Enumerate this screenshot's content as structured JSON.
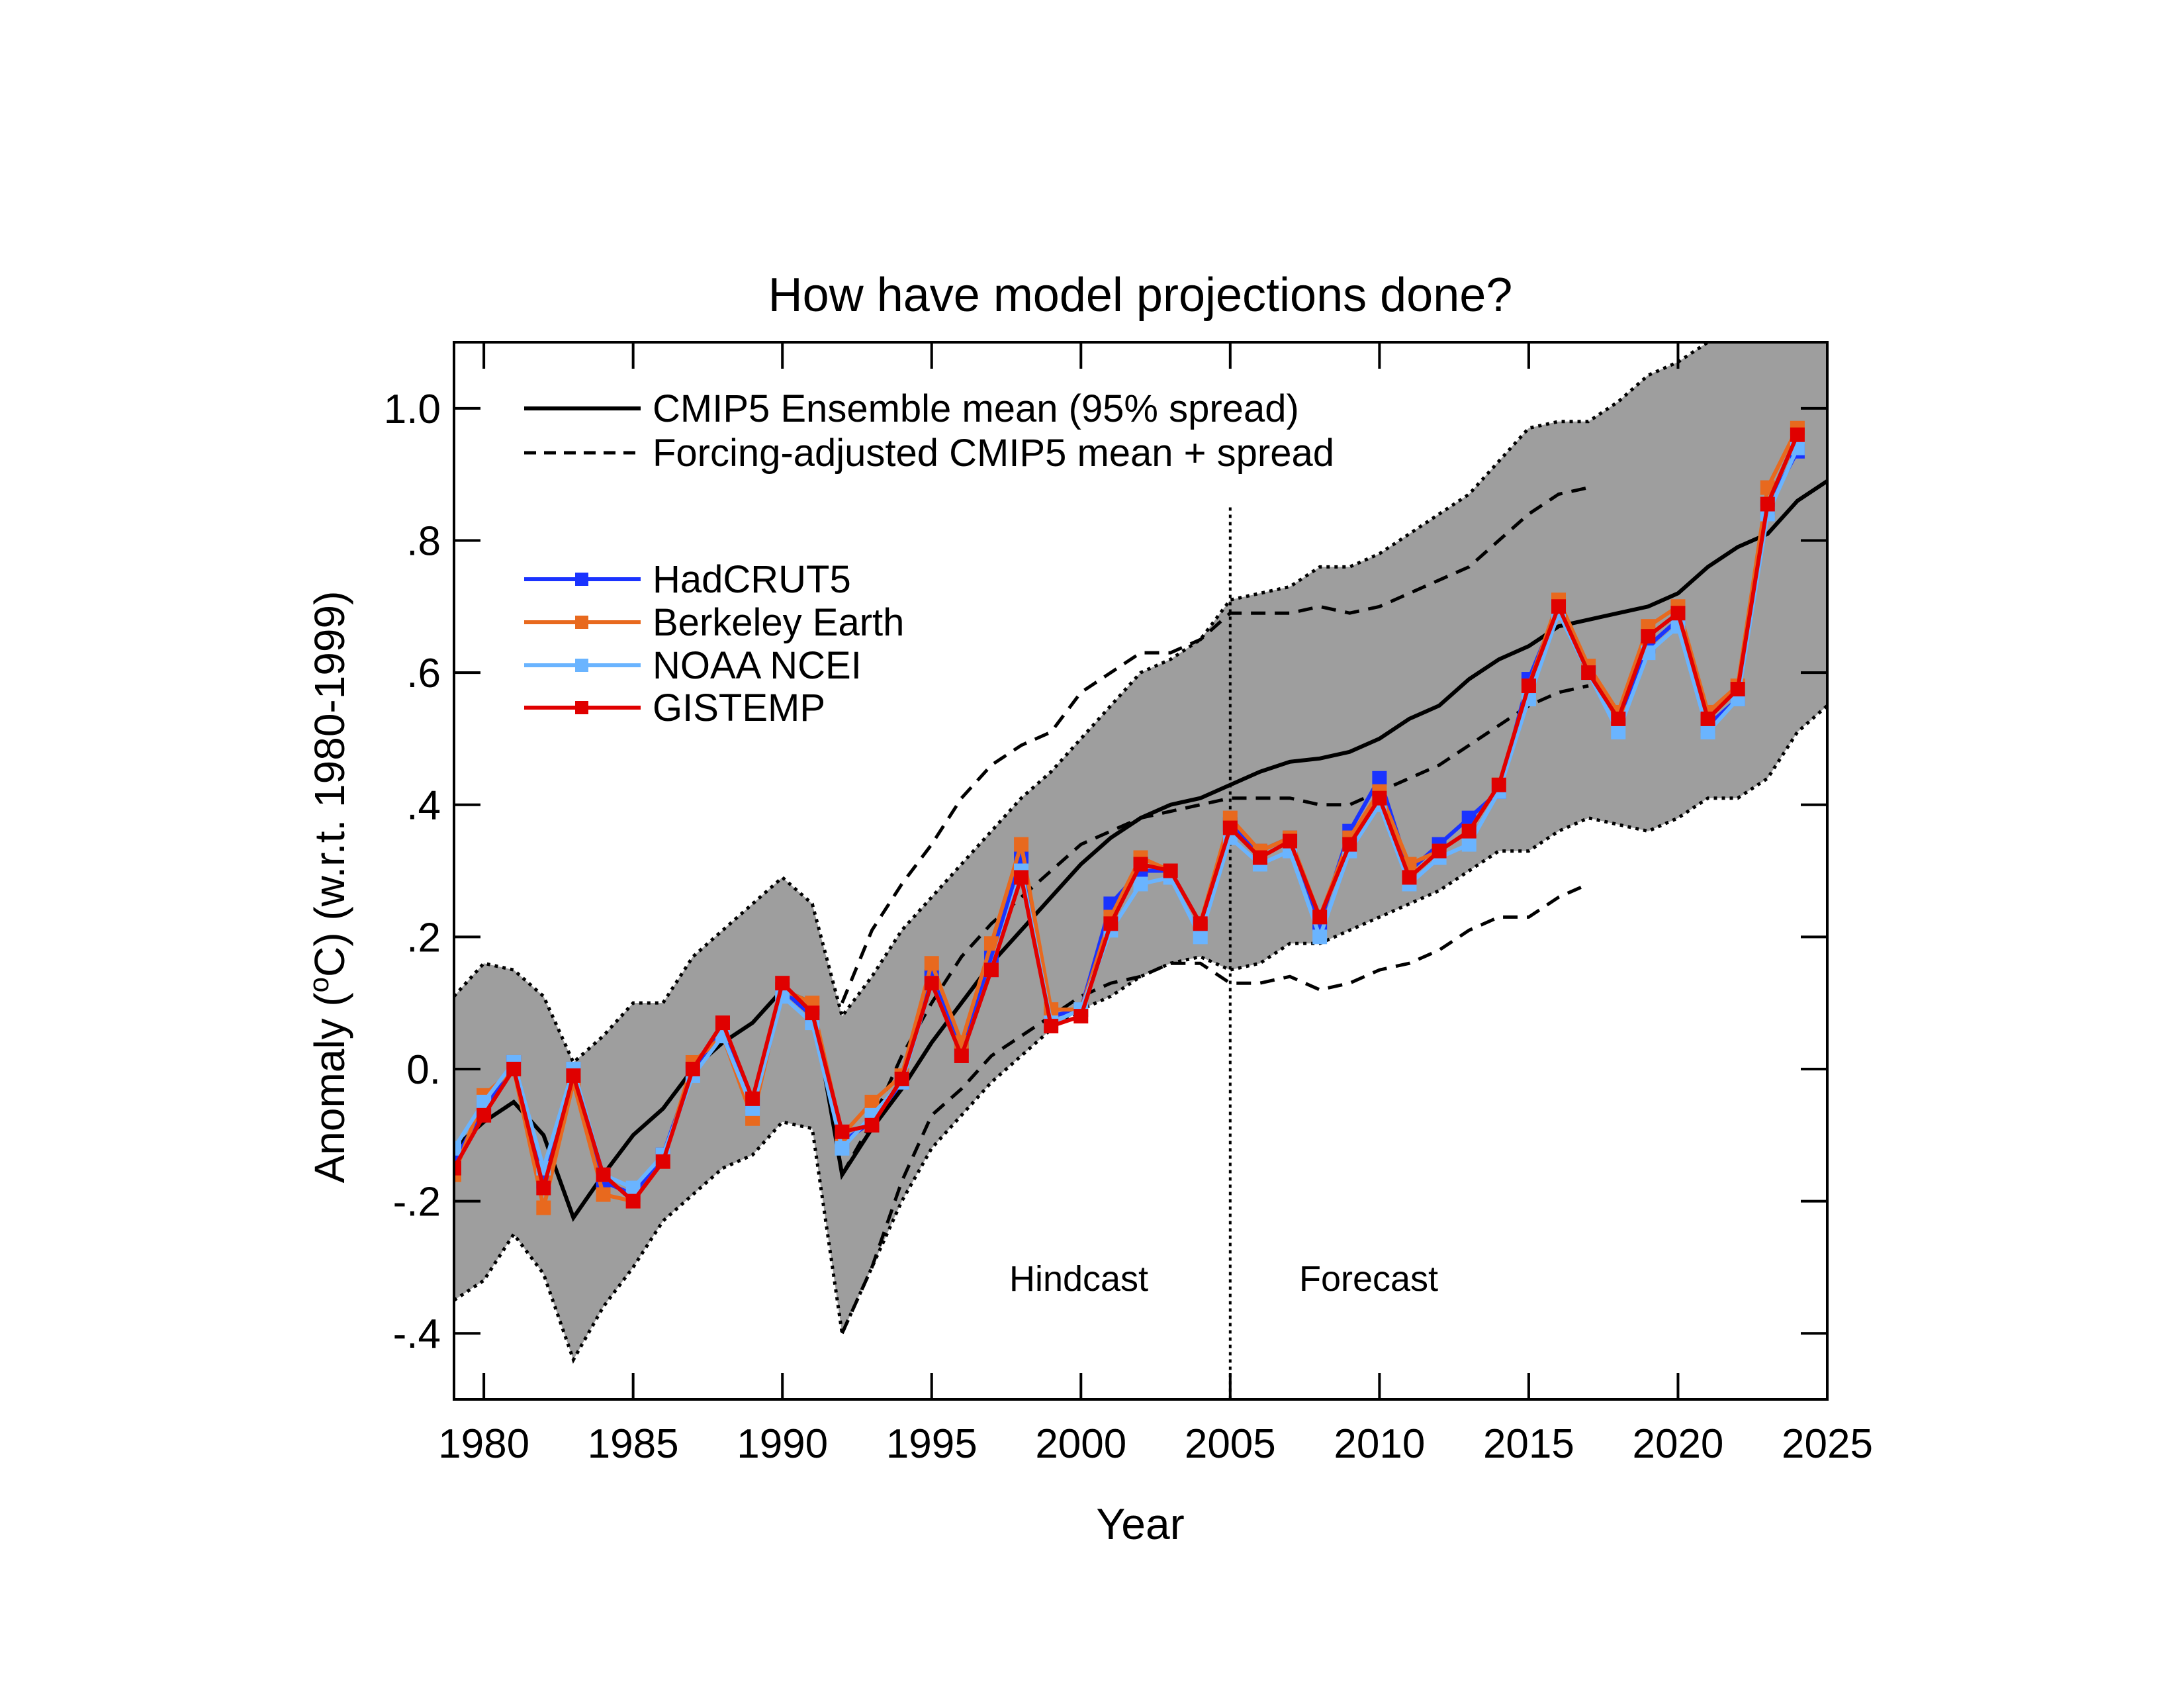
{
  "chart_data": {
    "type": "line",
    "title": "How have model projections done?",
    "xlabel": "Year",
    "ylabel": "Anomaly (°C) (w.r.t. 1980-1999)",
    "ylabel_parts": {
      "pre": "Anomaly (",
      "sup": "o",
      "post": "C) (w.r.t. 1980-1999)"
    },
    "xlim": [
      1979,
      2025
    ],
    "ylim": [
      -0.5,
      1.1
    ],
    "xticks": [
      1980,
      1985,
      1990,
      1995,
      2000,
      2005,
      2010,
      2015,
      2020,
      2025
    ],
    "xtick_labels": [
      "1980",
      "1985",
      "1990",
      "1995",
      "2000",
      "2005",
      "2010",
      "2015",
      "2020",
      "2025"
    ],
    "yticks": [
      1.0,
      0.8,
      0.6,
      0.4,
      0.2,
      0.0,
      -0.2,
      -0.4
    ],
    "ytick_labels": [
      "1.0",
      ".8",
      ".6",
      ".4",
      ".2",
      "0.",
      "-.2",
      "-.4"
    ],
    "grid": false,
    "legend_placement": "top-left",
    "annotations": {
      "hindcast": "Hindcast",
      "forecast": "Forecast",
      "divider_year": 2005
    },
    "model": {
      "years": [
        1979,
        1980,
        1981,
        1982,
        1983,
        1984,
        1985,
        1986,
        1987,
        1988,
        1989,
        1990,
        1991,
        1992,
        1993,
        1994,
        1995,
        1996,
        1997,
        1998,
        1999,
        2000,
        2001,
        2002,
        2003,
        2004,
        2005,
        2006,
        2007,
        2008,
        2009,
        2010,
        2011,
        2012,
        2013,
        2014,
        2015,
        2016,
        2017,
        2018,
        2019,
        2020,
        2021,
        2022,
        2023,
        2024,
        2025
      ],
      "mean_name": "CMIP5 Ensemble mean (95% spread)",
      "mean": [
        -0.12,
        -0.08,
        -0.05,
        -0.1,
        -0.225,
        -0.16,
        -0.1,
        -0.06,
        0.0,
        0.04,
        0.07,
        0.12,
        0.1,
        -0.16,
        -0.09,
        -0.03,
        0.04,
        0.1,
        0.16,
        0.21,
        0.26,
        0.31,
        0.35,
        0.38,
        0.4,
        0.41,
        0.43,
        0.45,
        0.465,
        0.47,
        0.48,
        0.5,
        0.53,
        0.55,
        0.59,
        0.62,
        0.64,
        0.67,
        0.68,
        0.69,
        0.7,
        0.72,
        0.76,
        0.79,
        0.81,
        0.86,
        0.89
      ],
      "upper": [
        0.11,
        0.16,
        0.15,
        0.11,
        0.01,
        0.05,
        0.1,
        0.1,
        0.17,
        0.21,
        0.25,
        0.29,
        0.25,
        0.08,
        0.14,
        0.21,
        0.26,
        0.31,
        0.36,
        0.41,
        0.45,
        0.5,
        0.55,
        0.6,
        0.62,
        0.65,
        0.71,
        0.72,
        0.73,
        0.76,
        0.76,
        0.78,
        0.81,
        0.84,
        0.87,
        0.92,
        0.97,
        0.98,
        0.98,
        1.01,
        1.05,
        1.07,
        1.1,
        1.14,
        1.18,
        1.22,
        1.26
      ],
      "lower": [
        -0.35,
        -0.32,
        -0.25,
        -0.31,
        -0.44,
        -0.36,
        -0.3,
        -0.23,
        -0.19,
        -0.15,
        -0.13,
        -0.08,
        -0.09,
        -0.4,
        -0.3,
        -0.2,
        -0.12,
        -0.07,
        -0.02,
        0.02,
        0.06,
        0.09,
        0.11,
        0.14,
        0.16,
        0.17,
        0.15,
        0.16,
        0.19,
        0.19,
        0.21,
        0.23,
        0.25,
        0.27,
        0.3,
        0.33,
        0.33,
        0.36,
        0.38,
        0.37,
        0.36,
        0.38,
        0.41,
        0.41,
        0.44,
        0.51,
        0.55
      ],
      "fill_color": "#9e9e9e"
    },
    "forcing_adjusted": {
      "name": "Forcing-adjusted CMIP5 mean + spread",
      "years": [
        1992,
        1993,
        1994,
        1995,
        1996,
        1997,
        1998,
        1999,
        2000,
        2001,
        2002,
        2003,
        2004,
        2005,
        2006,
        2007,
        2008,
        2009,
        2010,
        2011,
        2012,
        2013,
        2014,
        2015,
        2016,
        2017
      ],
      "upper": [
        0.1,
        0.21,
        0.28,
        0.34,
        0.41,
        0.46,
        0.49,
        0.51,
        0.57,
        0.6,
        0.63,
        0.63,
        0.65,
        0.69,
        0.69,
        0.69,
        0.7,
        0.69,
        0.7,
        0.72,
        0.74,
        0.76,
        0.8,
        0.84,
        0.87,
        0.88
      ],
      "mean": [
        -0.16,
        -0.08,
        0.02,
        0.1,
        0.17,
        0.22,
        0.26,
        0.3,
        0.34,
        0.36,
        0.38,
        0.39,
        0.4,
        0.41,
        0.41,
        0.41,
        0.4,
        0.4,
        0.42,
        0.44,
        0.46,
        0.49,
        0.52,
        0.55,
        0.57,
        0.58
      ],
      "lower": [
        -0.4,
        -0.3,
        -0.17,
        -0.07,
        -0.03,
        0.02,
        0.05,
        0.08,
        0.11,
        0.13,
        0.14,
        0.16,
        0.16,
        0.13,
        0.13,
        0.14,
        0.12,
        0.13,
        0.15,
        0.16,
        0.18,
        0.21,
        0.23,
        0.23,
        0.26,
        0.28
      ]
    },
    "obs_years": [
      1979,
      1980,
      1981,
      1982,
      1983,
      1984,
      1985,
      1986,
      1987,
      1988,
      1989,
      1990,
      1991,
      1992,
      1993,
      1994,
      1995,
      1996,
      1997,
      1998,
      1999,
      2000,
      2001,
      2002,
      2003,
      2004,
      2005,
      2006,
      2007,
      2008,
      2009,
      2010,
      2011,
      2012,
      2013,
      2014,
      2015,
      2016,
      2017,
      2018,
      2019,
      2020,
      2021,
      2022,
      2023,
      2024
    ],
    "series": [
      {
        "name": "HadCRUT5",
        "color": "#1a33ff",
        "values": [
          -0.14,
          -0.06,
          0.01,
          -0.17,
          0.0,
          -0.17,
          -0.19,
          -0.13,
          0.0,
          0.06,
          -0.05,
          0.12,
          0.08,
          -0.11,
          -0.08,
          -0.02,
          0.14,
          0.03,
          0.17,
          0.32,
          0.08,
          0.09,
          0.25,
          0.3,
          0.3,
          0.22,
          0.37,
          0.33,
          0.35,
          0.22,
          0.36,
          0.44,
          0.3,
          0.34,
          0.38,
          0.42,
          0.59,
          0.7,
          0.6,
          0.53,
          0.64,
          0.68,
          0.52,
          0.56,
          0.85,
          0.935
        ]
      },
      {
        "name": "Berkeley Earth",
        "color": "#e8691e",
        "values": [
          -0.16,
          -0.04,
          0.0,
          -0.21,
          -0.02,
          -0.19,
          -0.2,
          -0.14,
          0.01,
          0.05,
          -0.075,
          0.12,
          0.1,
          -0.1,
          -0.05,
          -0.01,
          0.16,
          0.04,
          0.19,
          0.34,
          0.09,
          0.09,
          0.23,
          0.32,
          0.3,
          0.22,
          0.38,
          0.33,
          0.35,
          0.23,
          0.35,
          0.42,
          0.31,
          0.33,
          0.36,
          0.43,
          0.58,
          0.71,
          0.61,
          0.54,
          0.67,
          0.7,
          0.54,
          0.58,
          0.88,
          0.97
        ]
      },
      {
        "name": "NOAA NCEI",
        "color": "#6ab4ff",
        "values": [
          -0.12,
          -0.05,
          0.01,
          -0.15,
          0.0,
          -0.16,
          -0.18,
          -0.13,
          -0.01,
          0.05,
          -0.06,
          0.11,
          0.07,
          -0.12,
          -0.07,
          -0.02,
          0.13,
          0.02,
          0.15,
          0.3,
          0.07,
          0.09,
          0.21,
          0.28,
          0.29,
          0.2,
          0.35,
          0.31,
          0.33,
          0.2,
          0.33,
          0.4,
          0.28,
          0.32,
          0.34,
          0.42,
          0.56,
          0.69,
          0.6,
          0.51,
          0.63,
          0.67,
          0.51,
          0.56,
          0.84,
          0.94
        ]
      },
      {
        "name": "GISTEMP",
        "color": "#e00000",
        "values": [
          -0.15,
          -0.07,
          0.0,
          -0.18,
          -0.01,
          -0.16,
          -0.2,
          -0.14,
          0.0,
          0.07,
          -0.045,
          0.13,
          0.085,
          -0.095,
          -0.085,
          -0.015,
          0.13,
          0.02,
          0.15,
          0.29,
          0.065,
          0.08,
          0.22,
          0.31,
          0.3,
          0.22,
          0.365,
          0.32,
          0.345,
          0.23,
          0.34,
          0.41,
          0.29,
          0.33,
          0.36,
          0.43,
          0.58,
          0.7,
          0.6,
          0.53,
          0.655,
          0.69,
          0.53,
          0.575,
          0.855,
          0.96
        ]
      }
    ]
  }
}
